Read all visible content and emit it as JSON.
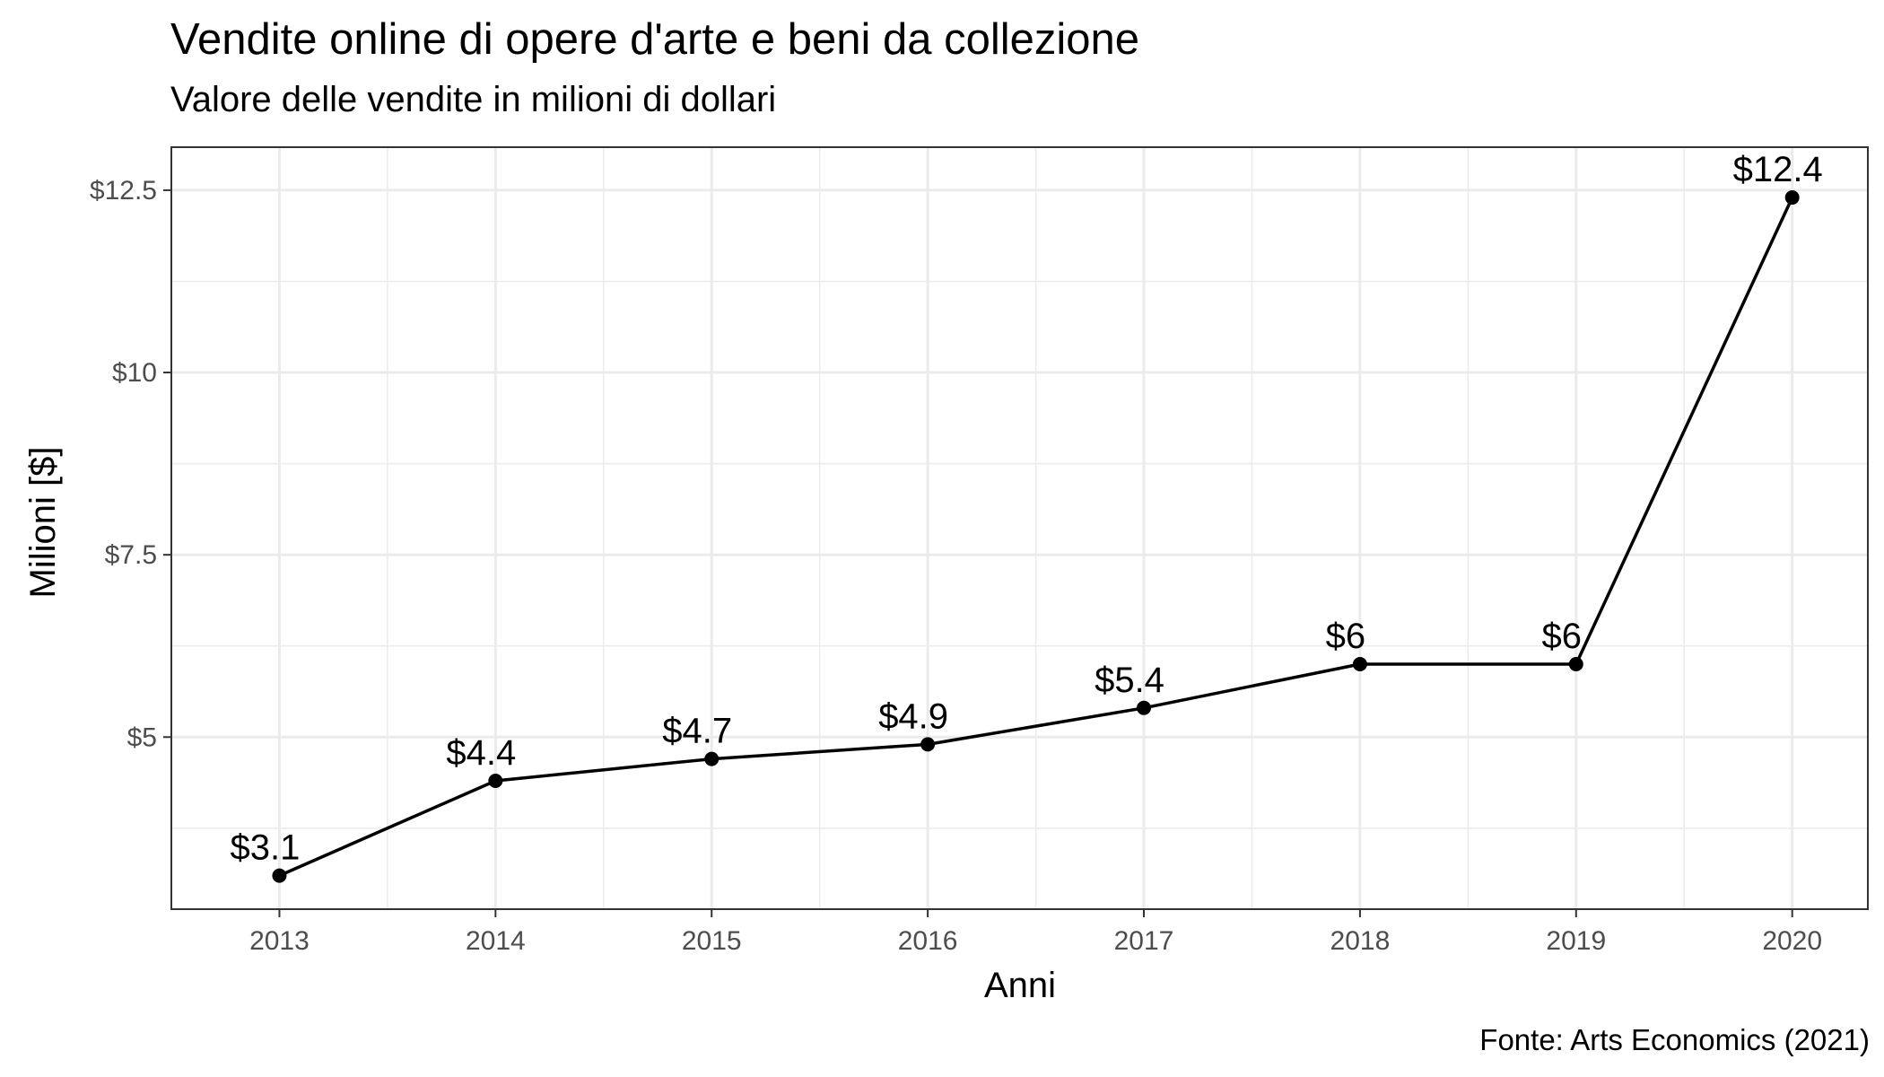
{
  "chart_data": {
    "type": "line",
    "title": "Vendite online di opere d'arte e beni da collezione",
    "subtitle": "Valore delle vendite in milioni di dollari",
    "xlabel": "Anni",
    "ylabel": "Milioni [$]",
    "caption": "Fonte: Arts Economics (2021)",
    "x": [
      2013,
      2014,
      2015,
      2016,
      2017,
      2018,
      2019,
      2020
    ],
    "values": [
      3.1,
      4.4,
      4.7,
      4.9,
      5.4,
      6,
      6,
      12.4
    ],
    "data_labels": [
      "$3.1",
      "$4.4",
      "$4.7",
      "$4.9",
      "$5.4",
      "$6",
      "$6",
      "$12.4"
    ],
    "x_ticks": [
      "2013",
      "2014",
      "2015",
      "2016",
      "2017",
      "2018",
      "2019",
      "2020"
    ],
    "y_ticks": [
      {
        "value": 5,
        "label": "$5"
      },
      {
        "value": 7.5,
        "label": "$7.5"
      },
      {
        "value": 10,
        "label": "$10"
      },
      {
        "value": 12.5,
        "label": "$12.5"
      }
    ],
    "xlim": [
      2012.5,
      2020.35
    ],
    "ylim": [
      2.64,
      13.09
    ],
    "grid": true,
    "legend": "none",
    "colors": {
      "line": "#000000",
      "grid": "#ebebeb",
      "panel_border": "#333333",
      "tick_text": "#4d4d4d"
    }
  }
}
